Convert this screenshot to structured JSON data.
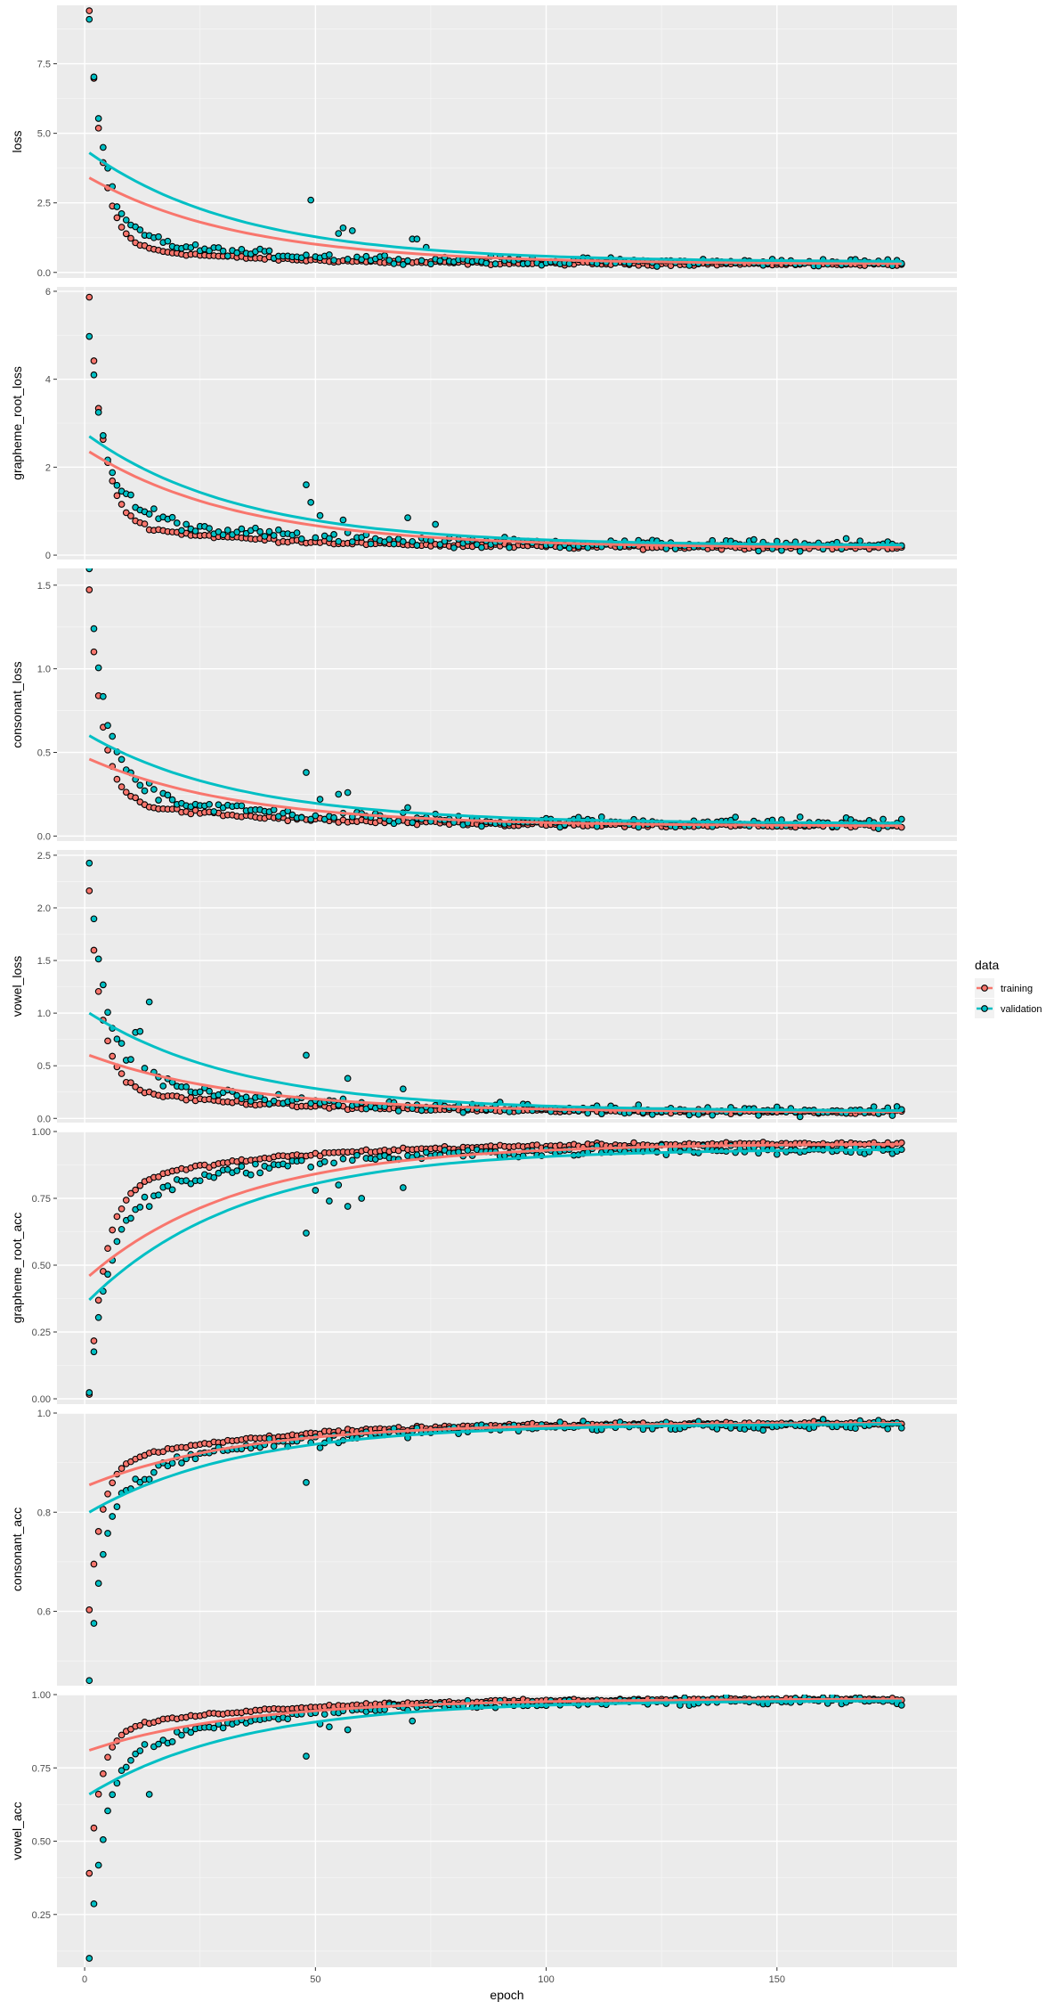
{
  "chart_data": {
    "type": "scatter",
    "xlabel": "epoch",
    "x_range": [
      -6,
      189
    ],
    "x_ticks": [
      0,
      50,
      100,
      150
    ],
    "n_epochs": 177,
    "legend": {
      "title": "data",
      "position": "right",
      "entries": [
        {
          "label": "training",
          "color": "#F8766D"
        },
        {
          "label": "validation",
          "color": "#00BFC4"
        }
      ]
    },
    "panels": [
      {
        "ylabel": "loss",
        "ylim": [
          -0.2,
          9.6
        ],
        "y_ticks": [
          0.0,
          2.5,
          5.0,
          7.5
        ],
        "y_tick_labels": [
          "0.0",
          "2.5",
          "5.0",
          "7.5"
        ],
        "kind": "decay",
        "training": {
          "start": 9.4,
          "end": 0.3,
          "rate": 0.35,
          "plateau": 1.05,
          "plateau_rate": 0.035,
          "noise": 0.05
        },
        "validation": {
          "start": 9.0,
          "end": 0.35,
          "rate": 0.3,
          "plateau": 1.35,
          "plateau_rate": 0.03,
          "noise": 0.12
        },
        "trend_training": [
          3.4,
          0.3
        ],
        "trend_validation": [
          4.3,
          0.38
        ],
        "outliers_validation": [
          [
            49,
            2.6
          ],
          [
            55,
            1.4
          ],
          [
            56,
            1.6
          ],
          [
            58,
            1.5
          ],
          [
            71,
            1.2
          ],
          [
            72,
            1.2
          ],
          [
            74,
            0.9
          ]
        ]
      },
      {
        "ylabel": "grapheme_root_loss",
        "ylim": [
          -0.1,
          6.1
        ],
        "y_ticks": [
          0,
          2,
          4,
          6
        ],
        "y_tick_labels": [
          "0",
          "2",
          "4",
          "6"
        ],
        "kind": "decay",
        "training": {
          "start": 5.85,
          "end": 0.17,
          "rate": 0.33,
          "plateau": 0.75,
          "plateau_rate": 0.03,
          "noise": 0.04
        },
        "validation": {
          "start": 5.0,
          "end": 0.22,
          "rate": 0.28,
          "plateau": 1.0,
          "plateau_rate": 0.028,
          "noise": 0.1
        },
        "trend_training": [
          2.35,
          0.17
        ],
        "trend_validation": [
          2.7,
          0.22
        ],
        "outliers_validation": [
          [
            48,
            1.6
          ],
          [
            49,
            1.2
          ],
          [
            51,
            0.9
          ],
          [
            56,
            0.8
          ],
          [
            70,
            0.85
          ],
          [
            76,
            0.7
          ]
        ]
      },
      {
        "ylabel": "consonant_loss",
        "ylim": [
          -0.03,
          1.6
        ],
        "y_ticks": [
          0.0,
          0.5,
          1.0,
          1.5
        ],
        "y_tick_labels": [
          "0.0",
          "0.5",
          "1.0",
          "1.5"
        ],
        "kind": "decay",
        "training": {
          "start": 1.47,
          "end": 0.06,
          "rate": 0.35,
          "plateau": 0.22,
          "plateau_rate": 0.03,
          "noise": 0.012
        },
        "validation": {
          "start": 1.56,
          "end": 0.075,
          "rate": 0.3,
          "plateau": 0.3,
          "plateau_rate": 0.03,
          "noise": 0.03
        },
        "trend_training": [
          0.46,
          0.06
        ],
        "trend_validation": [
          0.6,
          0.075
        ],
        "outliers_validation": [
          [
            48,
            0.38
          ],
          [
            51,
            0.22
          ],
          [
            55,
            0.25
          ],
          [
            57,
            0.26
          ],
          [
            70,
            0.17
          ]
        ]
      },
      {
        "ylabel": "vowel_loss",
        "ylim": [
          -0.04,
          2.55
        ],
        "y_ticks": [
          0.0,
          0.5,
          1.0,
          1.5,
          2.0,
          2.5
        ],
        "y_tick_labels": [
          "0.0",
          "0.5",
          "1.0",
          "1.5",
          "2.0",
          "2.5"
        ],
        "kind": "decay",
        "training": {
          "start": 2.15,
          "end": 0.06,
          "rate": 0.35,
          "plateau": 0.3,
          "plateau_rate": 0.03,
          "noise": 0.015
        },
        "validation": {
          "start": 2.45,
          "end": 0.07,
          "rate": 0.3,
          "plateau": 0.45,
          "plateau_rate": 0.03,
          "noise": 0.04
        },
        "trend_training": [
          0.6,
          0.06
        ],
        "trend_validation": [
          1.0,
          0.07
        ],
        "outliers_validation": [
          [
            14,
            1.1
          ],
          [
            11,
            0.8
          ],
          [
            12,
            0.75
          ],
          [
            48,
            0.6
          ],
          [
            57,
            0.38
          ],
          [
            69,
            0.28
          ]
        ]
      },
      {
        "ylabel": "grapheme_root_acc",
        "ylim": [
          -0.02,
          1.0
        ],
        "y_ticks": [
          0.0,
          0.25,
          0.5,
          0.75,
          1.0
        ],
        "y_tick_labels": [
          "0.00",
          "0.25",
          "0.50",
          "0.75",
          "1.00"
        ],
        "kind": "rise",
        "training": {
          "start": 0.02,
          "end": 0.955,
          "rate": 0.3,
          "plateau": 0.78,
          "plateau_rate": 0.03,
          "noise": 0.006
        },
        "validation": {
          "start": 0.03,
          "end": 0.935,
          "rate": 0.25,
          "plateau": 0.72,
          "plateau_rate": 0.03,
          "noise": 0.015
        },
        "trend_training": [
          0.46,
          0.955
        ],
        "trend_validation": [
          0.37,
          0.935
        ],
        "outliers_validation": [
          [
            48,
            0.62
          ],
          [
            50,
            0.78
          ],
          [
            53,
            0.74
          ],
          [
            55,
            0.8
          ],
          [
            57,
            0.72
          ],
          [
            60,
            0.75
          ],
          [
            69,
            0.79
          ]
        ]
      },
      {
        "ylabel": "consonant_acc",
        "ylim": [
          0.45,
          1.0
        ],
        "y_ticks": [
          0.6,
          0.8,
          1.0
        ],
        "y_tick_labels": [
          "0.6",
          "0.8",
          "1.0"
        ],
        "kind": "rise",
        "training": {
          "start": 0.6,
          "end": 0.98,
          "rate": 0.4,
          "plateau": 0.89,
          "plateau_rate": 0.03,
          "noise": 0.003
        },
        "validation": {
          "start": 0.46,
          "end": 0.978,
          "rate": 0.35,
          "plateau": 0.85,
          "plateau_rate": 0.03,
          "noise": 0.008
        },
        "trend_training": [
          0.855,
          0.98
        ],
        "trend_validation": [
          0.8,
          0.978
        ],
        "outliers_validation": [
          [
            48,
            0.86
          ],
          [
            51,
            0.93
          ],
          [
            55,
            0.94
          ],
          [
            70,
            0.95
          ]
        ]
      },
      {
        "ylabel": "vowel_acc",
        "ylim": [
          0.07,
          1.0
        ],
        "y_ticks": [
          0.25,
          0.5,
          0.75,
          1.0
        ],
        "y_tick_labels": [
          "0.25",
          "0.50",
          "0.75",
          "1.00"
        ],
        "kind": "rise",
        "training": {
          "start": 0.39,
          "end": 0.985,
          "rate": 0.4,
          "plateau": 0.87,
          "plateau_rate": 0.03,
          "noise": 0.004
        },
        "validation": {
          "start": 0.1,
          "end": 0.98,
          "rate": 0.32,
          "plateau": 0.78,
          "plateau_rate": 0.03,
          "noise": 0.012
        },
        "trend_training": [
          0.81,
          0.985
        ],
        "trend_validation": [
          0.66,
          0.98
        ],
        "outliers_validation": [
          [
            14,
            0.67
          ],
          [
            48,
            0.79
          ],
          [
            51,
            0.9
          ],
          [
            53,
            0.89
          ],
          [
            57,
            0.88
          ],
          [
            71,
            0.91
          ]
        ]
      }
    ]
  }
}
